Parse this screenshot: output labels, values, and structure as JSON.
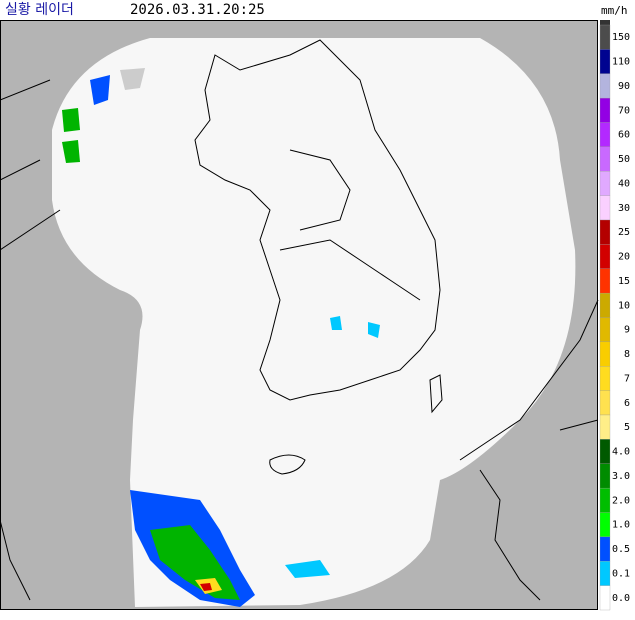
{
  "header": {
    "title": "실황 레이더",
    "timestamp": "2026.03.31.20:25",
    "unit": "mm/h"
  },
  "legend": [
    {
      "label": "150",
      "color": "#4c4c4c"
    },
    {
      "label": "110",
      "color": "#000390"
    },
    {
      "label": "90",
      "color": "#b3b4de"
    },
    {
      "label": "70",
      "color": "#9300e4"
    },
    {
      "label": "60",
      "color": "#b329ff"
    },
    {
      "label": "50",
      "color": "#c969ff"
    },
    {
      "label": "40",
      "color": "#e0a9ff"
    },
    {
      "label": "30",
      "color": "#fad0ff"
    },
    {
      "label": "25",
      "color": "#b40000"
    },
    {
      "label": "20",
      "color": "#d20000"
    },
    {
      "label": "15",
      "color": "#ff3300"
    },
    {
      "label": "10",
      "color": "#ccaa00"
    },
    {
      "label": "9",
      "color": "#e0b900"
    },
    {
      "label": "8",
      "color": "#f9cd00"
    },
    {
      "label": "7",
      "color": "#ffdc1f"
    },
    {
      "label": "6",
      "color": "#ffe14f"
    },
    {
      "label": "5",
      "color": "#ffee88"
    },
    {
      "label": "4.0",
      "color": "#005a00"
    },
    {
      "label": "3.0",
      "color": "#008c00"
    },
    {
      "label": "2.0",
      "color": "#00be00"
    },
    {
      "label": "1.0",
      "color": "#00ff00"
    },
    {
      "label": "0.5",
      "color": "#0050ff"
    },
    {
      "label": "0.1",
      "color": "#00c8ff"
    },
    {
      "label": "0.0",
      "color": "#ffffff"
    }
  ]
}
